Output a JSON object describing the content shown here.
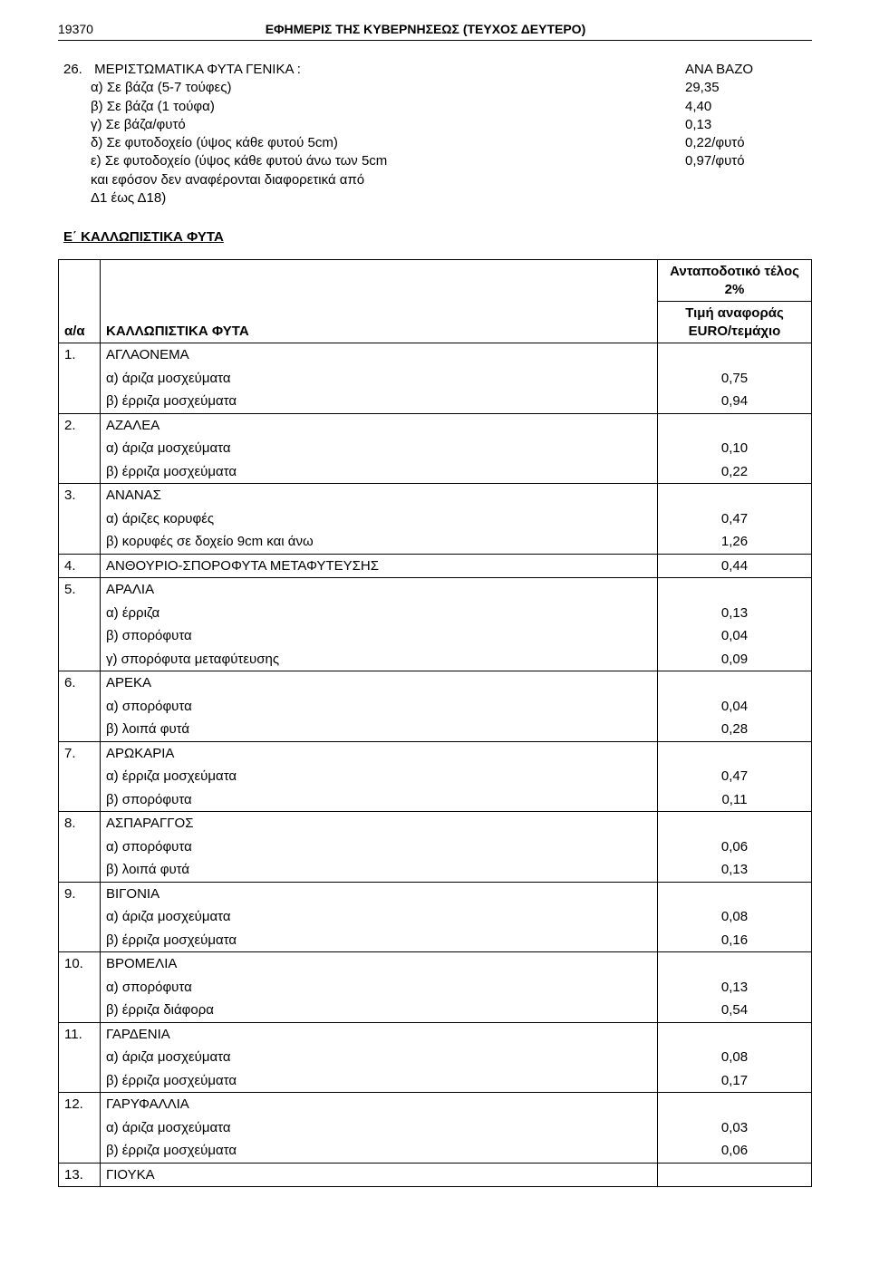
{
  "header": {
    "page_number": "19370",
    "publication_title": "ΕΦΗΜΕΡΙΣ ΤΗΣ ΚΥΒΕΡΝΗΣΕΩΣ (ΤΕΥΧΟΣ ΔΕΥΤΕΡΟ)"
  },
  "section26": {
    "num": "26.",
    "title": "ΜΕΡΙΣΤΩΜΑΤΙΚΑ ΦΥΤΑ ΓΕΝΙΚΑ :",
    "right_header": "ΑΝΑ ΒΑΖΟ",
    "lines": [
      {
        "label": "α) Σε βάζα (5-7 τούφες)",
        "value": "29,35"
      },
      {
        "label": "β) Σε βάζα (1 τούφα)",
        "value": "4,40"
      },
      {
        "label": "γ) Σε βάζα/φυτό",
        "value": "0,13"
      },
      {
        "label": "δ) Σε φυτοδοχείο (ύψος κάθε φυτού 5cm)",
        "value": "0,22/φυτό"
      },
      {
        "label": "ε) Σε φυτοδοχείο (ύψος κάθε φυτού άνω των 5cm",
        "value": "0,97/φυτό"
      },
      {
        "label": "και εφόσον δεν αναφέρονται διαφορετικά από",
        "value": ""
      },
      {
        "label": "Δ1 έως Δ18)",
        "value": ""
      }
    ]
  },
  "section_e_title": "Ε΄ ΚΑΛΛΩΠΙΣΤΙΚΑ ΦΥΤΑ",
  "table": {
    "head": {
      "aa": "α/α",
      "desc": "ΚΑΛΛΩΠΙΣΤΙΚΑ ΦΥΤΑ",
      "telos": "Ανταποδοτικό τέλος 2%",
      "value_header_l1": "Τιμή αναφοράς",
      "value_header_l2": "EURO/τεμάχιο"
    },
    "rows": [
      {
        "n": "1.",
        "name": "ΑΓΛΑΟΝΕΜΑ",
        "subs": [
          {
            "label": "α) άριζα μοσχεύματα",
            "value": "0,75"
          },
          {
            "label": "β) έρριζα μοσχεύματα",
            "value": "0,94"
          }
        ]
      },
      {
        "n": "2.",
        "name": "ΑΖΑΛΕΑ",
        "subs": [
          {
            "label": "α) άριζα μοσχεύματα",
            "value": "0,10"
          },
          {
            "label": "β) έρριζα μοσχεύματα",
            "value": "0,22"
          }
        ]
      },
      {
        "n": "3.",
        "name": "ΑΝΑΝΑΣ",
        "subs": [
          {
            "label": "α) άριζες κορυφές",
            "value": "0,47"
          },
          {
            "label": "β) κορυφές σε δοχείο 9cm και άνω",
            "value": "1,26"
          }
        ]
      },
      {
        "n": "4.",
        "name": "ΑΝΘΟΥΡΙΟ-ΣΠΟΡΟΦΥΤΑ ΜΕΤΑΦΥΤΕΥΣΗΣ",
        "single_value": "0,44"
      },
      {
        "n": "5.",
        "name": "ΑΡΑΛΙΑ",
        "subs": [
          {
            "label": "α) έρριζα",
            "value": "0,13"
          },
          {
            "label": "β) σπορόφυτα",
            "value": "0,04"
          },
          {
            "label": "γ) σπορόφυτα μεταφύτευσης",
            "value": "0,09"
          }
        ]
      },
      {
        "n": "6.",
        "name": "ΑΡΕΚΑ",
        "subs": [
          {
            "label": "α) σπορόφυτα",
            "value": "0,04"
          },
          {
            "label": "β) λοιπά φυτά",
            "value": "0,28"
          }
        ]
      },
      {
        "n": "7.",
        "name": "ΑΡΩΚΑΡΙΑ",
        "subs": [
          {
            "label": "α) έρριζα μοσχεύματα",
            "value": "0,47"
          },
          {
            "label": "β) σπορόφυτα",
            "value": "0,11"
          }
        ]
      },
      {
        "n": "8.",
        "name": "ΑΣΠΑΡΑΓΓΟΣ",
        "subs": [
          {
            "label": "α) σπορόφυτα",
            "value": "0,06"
          },
          {
            "label": "β) λοιπά φυτά",
            "value": "0,13"
          }
        ]
      },
      {
        "n": "9.",
        "name": "ΒΙΓΟΝΙΑ",
        "subs": [
          {
            "label": "α) άριζα μοσχεύματα",
            "value": "0,08"
          },
          {
            "label": "β) έρριζα μοσχεύματα",
            "value": "0,16"
          }
        ]
      },
      {
        "n": "10.",
        "name": "ΒΡΟΜΕΛΙΑ",
        "subs": [
          {
            "label": "α) σπορόφυτα",
            "value": "0,13"
          },
          {
            "label": "β) έρριζα διάφορα",
            "value": "0,54"
          }
        ]
      },
      {
        "n": "11.",
        "name": "ΓΑΡΔΕΝΙΑ",
        "subs": [
          {
            "label": "α) άριζα μοσχεύματα",
            "value": "0,08"
          },
          {
            "label": "β) έρριζα μοσχεύματα",
            "value": "0,17"
          }
        ]
      },
      {
        "n": "12.",
        "name": "ΓΑΡΥΦΑΛΛΙΑ",
        "subs": [
          {
            "label": "α) άριζα μοσχεύματα",
            "value": "0,03"
          },
          {
            "label": "β) έρριζα μοσχεύματα",
            "value": "0,06"
          }
        ]
      },
      {
        "n": "13.",
        "name": "ΓΙΟΥΚΑ"
      }
    ]
  },
  "colors": {
    "text": "#000000",
    "background": "#ffffff",
    "border": "#000000"
  }
}
